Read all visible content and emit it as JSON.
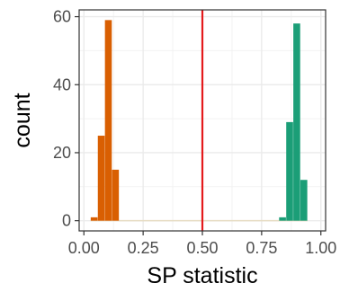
{
  "chart_data": {
    "type": "bar",
    "subtype": "histogram",
    "title": "",
    "xlabel": "SP statistic",
    "ylabel": "count",
    "xlim": [
      -0.02,
      1.02
    ],
    "ylim": [
      -3,
      62
    ],
    "x_ticks": [
      0.0,
      0.25,
      0.5,
      0.75,
      1.0
    ],
    "x_tick_labels": [
      "0.00",
      "0.25",
      "0.50",
      "0.75",
      "1.00"
    ],
    "y_ticks": [
      0,
      20,
      40,
      60
    ],
    "y_tick_labels": [
      "0",
      "20",
      "40",
      "60"
    ],
    "grid": true,
    "legend": "none",
    "vline": {
      "x": 0.5,
      "color": "#e41a1c"
    },
    "baseline_color": "#e6dcc2",
    "series": [
      {
        "color": "#d95f02",
        "bins": [
          {
            "x0": 0.0288,
            "x1": 0.0588,
            "count": 1
          },
          {
            "x0": 0.0588,
            "x1": 0.0888,
            "count": 25
          },
          {
            "x0": 0.0888,
            "x1": 0.1188,
            "count": 59
          },
          {
            "x0": 0.1188,
            "x1": 0.1488,
            "count": 15
          }
        ]
      },
      {
        "color": "#1b9e77",
        "bins": [
          {
            "x0": 0.8238,
            "x1": 0.8538,
            "count": 1
          },
          {
            "x0": 0.8538,
            "x1": 0.8838,
            "count": 29
          },
          {
            "x0": 0.8838,
            "x1": 0.9138,
            "count": 58
          },
          {
            "x0": 0.9138,
            "x1": 0.9438,
            "count": 12
          }
        ]
      }
    ]
  }
}
